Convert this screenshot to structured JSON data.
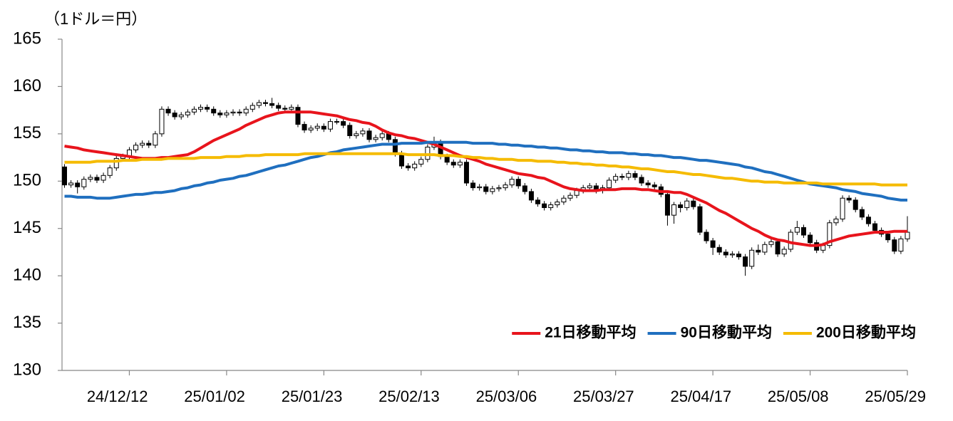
{
  "chart_data": {
    "type": "candlestick",
    "y_label": "（1ドル＝円）",
    "categories": [
      null,
      null,
      null,
      null,
      null,
      null,
      null,
      null,
      null,
      null,
      "24/12/12",
      null,
      null,
      null,
      null,
      null,
      null,
      null,
      null,
      null,
      null,
      null,
      null,
      null,
      null,
      "25/01/02",
      null,
      null,
      null,
      null,
      null,
      null,
      null,
      null,
      null,
      null,
      null,
      null,
      null,
      null,
      "25/01/23",
      null,
      null,
      null,
      null,
      null,
      null,
      null,
      null,
      null,
      null,
      null,
      null,
      null,
      null,
      "25/02/13",
      null,
      null,
      null,
      null,
      null,
      null,
      null,
      null,
      null,
      null,
      null,
      null,
      null,
      null,
      "25/03/06",
      null,
      null,
      null,
      null,
      null,
      null,
      null,
      null,
      null,
      null,
      null,
      null,
      null,
      null,
      "25/03/27",
      null,
      null,
      null,
      null,
      null,
      null,
      null,
      null,
      null,
      null,
      null,
      null,
      null,
      null,
      "25/04/17",
      null,
      null,
      null,
      null,
      null,
      null,
      null,
      null,
      null,
      null,
      null,
      null,
      null,
      null,
      "25/05/08",
      null,
      null,
      null,
      null,
      null,
      null,
      null,
      null,
      null,
      null,
      null,
      null,
      null,
      null,
      "25/05/29"
    ],
    "open": [
      151.5,
      149.6,
      149.8,
      149.4,
      150.2,
      150.4,
      150.1,
      150.6,
      151.4,
      152.4,
      152.6,
      153.3,
      153.8,
      154.0,
      153.8,
      155.0,
      157.6,
      157.2,
      156.8,
      157.0,
      157.3,
      157.6,
      157.8,
      157.6,
      157.2,
      157.0,
      157.2,
      157.3,
      157.2,
      157.6,
      158.0,
      158.3,
      158.2,
      158.0,
      157.7,
      157.6,
      157.8,
      156.0,
      155.4,
      155.6,
      155.8,
      155.5,
      156.3,
      156.3,
      155.9,
      154.8,
      155.0,
      155.3,
      154.4,
      154.6,
      155.0,
      154.4,
      152.9,
      151.6,
      151.4,
      151.8,
      152.3,
      153.6,
      154.1,
      152.6,
      152.0,
      151.7,
      152.0,
      149.8,
      149.3,
      149.4,
      148.9,
      149.2,
      149.3,
      149.6,
      150.2,
      149.5,
      148.9,
      148.0,
      147.6,
      147.2,
      147.5,
      147.8,
      148.2,
      148.5,
      149.0,
      149.3,
      149.5,
      149.0,
      149.3,
      150.1,
      150.5,
      150.4,
      150.8,
      150.4,
      149.8,
      149.6,
      149.4,
      148.6,
      146.4,
      147.5,
      147.2,
      147.9,
      147.3,
      144.6,
      143.7,
      143.0,
      142.5,
      142.2,
      142.3,
      142.0,
      141.0,
      142.7,
      142.5,
      143.3,
      143.6,
      142.3,
      142.8,
      144.6,
      145.1,
      144.3,
      143.5,
      142.7,
      143.2,
      145.6,
      146.0,
      148.2,
      148.0,
      147.0,
      146.2,
      145.5,
      144.8,
      144.4,
      143.8,
      142.6,
      143.9
    ],
    "high": [
      151.8,
      150.1,
      150.1,
      150.5,
      150.7,
      150.7,
      150.9,
      151.7,
      152.7,
      152.9,
      153.6,
      154.1,
      154.3,
      154.3,
      155.3,
      157.9,
      157.9,
      157.5,
      157.3,
      157.6,
      157.9,
      158.1,
      158.1,
      157.9,
      157.5,
      157.5,
      157.6,
      157.6,
      157.9,
      158.3,
      158.6,
      158.6,
      158.8,
      158.3,
      158.0,
      158.1,
      158.1,
      156.3,
      155.9,
      156.1,
      156.1,
      156.6,
      156.6,
      156.6,
      156.2,
      155.3,
      155.6,
      155.6,
      154.9,
      155.3,
      155.3,
      154.7,
      153.2,
      151.9,
      152.1,
      152.6,
      153.9,
      154.7,
      154.4,
      152.9,
      152.3,
      152.3,
      152.3,
      150.1,
      149.7,
      149.7,
      149.5,
      149.6,
      149.9,
      150.5,
      150.5,
      149.8,
      149.2,
      148.3,
      147.9,
      147.8,
      148.1,
      148.5,
      148.8,
      149.3,
      149.6,
      149.8,
      149.8,
      149.6,
      150.4,
      150.8,
      150.8,
      151.1,
      151.1,
      150.7,
      150.1,
      149.9,
      149.7,
      148.9,
      147.8,
      147.8,
      148.2,
      148.2,
      147.6,
      144.9,
      144.0,
      143.3,
      142.8,
      142.6,
      142.6,
      142.3,
      143.0,
      143.3,
      143.6,
      143.9,
      143.9,
      143.1,
      144.9,
      145.8,
      145.4,
      144.6,
      143.8,
      143.5,
      145.9,
      146.3,
      148.5,
      148.5,
      148.3,
      147.3,
      146.5,
      145.8,
      145.1,
      144.7,
      144.1,
      144.2,
      146.3
    ],
    "low": [
      149.3,
      149.3,
      148.7,
      149.1,
      149.9,
      149.8,
      149.8,
      150.3,
      151.1,
      152.1,
      152.3,
      153.0,
      153.5,
      153.5,
      153.5,
      154.7,
      156.9,
      156.5,
      156.5,
      156.7,
      157.0,
      157.3,
      157.3,
      156.9,
      156.7,
      156.7,
      156.9,
      156.9,
      156.9,
      157.3,
      157.7,
      157.9,
      157.7,
      157.4,
      157.3,
      157.3,
      155.7,
      155.1,
      155.1,
      155.3,
      155.2,
      155.2,
      156.0,
      155.6,
      154.5,
      154.5,
      154.7,
      154.1,
      154.1,
      154.3,
      154.1,
      152.6,
      151.3,
      151.1,
      151.1,
      151.5,
      152.0,
      153.3,
      152.3,
      151.7,
      151.4,
      151.4,
      149.5,
      149.0,
      149.0,
      148.6,
      148.6,
      148.9,
      149.0,
      149.3,
      149.2,
      148.6,
      147.7,
      147.3,
      146.9,
      146.9,
      147.2,
      147.5,
      147.9,
      148.2,
      148.7,
      149.0,
      148.7,
      148.7,
      149.0,
      149.8,
      150.1,
      150.1,
      150.1,
      149.5,
      149.3,
      149.1,
      148.3,
      145.3,
      145.5,
      146.7,
      146.9,
      147.0,
      144.3,
      143.4,
      142.2,
      142.2,
      141.9,
      141.9,
      141.7,
      140.0,
      140.7,
      142.2,
      142.2,
      143.0,
      142.0,
      142.0,
      142.5,
      144.3,
      144.0,
      143.2,
      142.4,
      142.4,
      142.9,
      145.3,
      145.7,
      147.7,
      146.7,
      145.9,
      145.2,
      144.5,
      144.1,
      143.5,
      142.3,
      142.3,
      143.6
    ],
    "close": [
      149.6,
      149.8,
      149.4,
      150.2,
      150.4,
      150.1,
      150.6,
      151.4,
      152.4,
      152.6,
      153.3,
      153.8,
      154.0,
      153.8,
      155.0,
      157.6,
      157.2,
      156.8,
      157.0,
      157.3,
      157.6,
      157.8,
      157.6,
      157.2,
      157.0,
      157.2,
      157.3,
      157.2,
      157.6,
      158.0,
      158.3,
      158.2,
      158.0,
      157.7,
      157.6,
      157.8,
      156.0,
      155.4,
      155.6,
      155.8,
      155.5,
      156.3,
      156.3,
      155.9,
      154.8,
      155.0,
      155.3,
      154.4,
      154.6,
      155.0,
      154.4,
      152.9,
      151.6,
      151.4,
      151.8,
      152.3,
      153.6,
      154.1,
      152.6,
      152.0,
      151.7,
      152.0,
      149.8,
      149.3,
      149.4,
      148.9,
      149.2,
      149.3,
      149.6,
      150.2,
      149.5,
      148.9,
      148.0,
      147.6,
      147.2,
      147.5,
      147.8,
      148.2,
      148.5,
      149.0,
      149.3,
      149.5,
      149.0,
      149.3,
      150.1,
      150.5,
      150.4,
      150.8,
      150.4,
      149.8,
      149.6,
      149.4,
      148.6,
      146.4,
      147.5,
      147.2,
      147.9,
      147.3,
      144.6,
      143.7,
      143.0,
      142.5,
      142.2,
      142.3,
      142.0,
      141.0,
      142.7,
      142.5,
      143.3,
      143.6,
      142.3,
      142.8,
      144.6,
      145.1,
      144.3,
      143.5,
      142.7,
      143.2,
      145.6,
      146.0,
      148.2,
      148.0,
      147.0,
      146.2,
      145.5,
      144.8,
      144.4,
      143.8,
      142.6,
      143.9,
      144.6
    ],
    "up_color": "#ffffff",
    "down_color": "#000000",
    "series": [
      {
        "name": "21日移動平均",
        "color": "#e8141c",
        "values": [
          153.7,
          153.6,
          153.5,
          153.3,
          153.2,
          153.1,
          153.0,
          152.9,
          152.8,
          152.7,
          152.6,
          152.5,
          152.4,
          152.4,
          152.4,
          152.5,
          152.5,
          152.6,
          152.7,
          152.8,
          153.1,
          153.5,
          153.9,
          154.3,
          154.6,
          154.9,
          155.2,
          155.5,
          155.9,
          156.2,
          156.5,
          156.8,
          157.0,
          157.2,
          157.3,
          157.3,
          157.3,
          157.3,
          157.3,
          157.2,
          157.1,
          157.0,
          156.9,
          156.7,
          156.5,
          156.4,
          156.2,
          156.1,
          155.8,
          155.4,
          155.1,
          154.9,
          154.8,
          154.6,
          154.5,
          154.3,
          154.1,
          153.9,
          153.6,
          153.3,
          153.0,
          152.7,
          152.5,
          152.3,
          152.1,
          151.8,
          151.6,
          151.4,
          151.2,
          151.0,
          150.8,
          150.7,
          150.6,
          150.4,
          150.3,
          150.0,
          149.7,
          149.4,
          149.2,
          149.1,
          149.0,
          149.0,
          149.0,
          149.1,
          149.1,
          149.1,
          149.2,
          149.2,
          149.2,
          149.1,
          149.1,
          149.0,
          148.9,
          148.9,
          148.8,
          148.8,
          148.6,
          148.3,
          148.0,
          147.7,
          147.3,
          146.9,
          146.6,
          146.2,
          145.8,
          145.4,
          145.0,
          144.7,
          144.3,
          144.0,
          143.8,
          143.7,
          143.5,
          143.4,
          143.3,
          143.2,
          143.2,
          143.3,
          143.6,
          143.8,
          144.0,
          144.2,
          144.3,
          144.4,
          144.5,
          144.6,
          144.6,
          144.6,
          144.7,
          144.7,
          144.7
        ]
      },
      {
        "name": "90日移動平均",
        "color": "#1f6fbf",
        "values": [
          148.4,
          148.4,
          148.3,
          148.3,
          148.3,
          148.2,
          148.2,
          148.2,
          148.3,
          148.4,
          148.5,
          148.6,
          148.6,
          148.7,
          148.8,
          148.8,
          148.9,
          149.0,
          149.2,
          149.3,
          149.5,
          149.6,
          149.8,
          149.9,
          150.1,
          150.2,
          150.3,
          150.5,
          150.6,
          150.8,
          151.0,
          151.2,
          151.4,
          151.6,
          151.7,
          151.9,
          152.1,
          152.3,
          152.5,
          152.6,
          152.8,
          153.0,
          153.1,
          153.3,
          153.4,
          153.5,
          153.6,
          153.7,
          153.8,
          153.9,
          153.9,
          153.9,
          154.0,
          154.0,
          154.0,
          154.0,
          154.1,
          154.1,
          154.1,
          154.1,
          154.1,
          154.1,
          154.1,
          154.0,
          154.0,
          154.0,
          154.0,
          153.9,
          153.9,
          153.8,
          153.8,
          153.7,
          153.7,
          153.6,
          153.6,
          153.5,
          153.5,
          153.4,
          153.3,
          153.3,
          153.2,
          153.2,
          153.1,
          153.1,
          153.0,
          153.0,
          153.0,
          152.9,
          152.9,
          152.8,
          152.8,
          152.7,
          152.7,
          152.6,
          152.5,
          152.5,
          152.4,
          152.3,
          152.2,
          152.2,
          152.1,
          152.0,
          151.9,
          151.8,
          151.7,
          151.5,
          151.4,
          151.2,
          151.0,
          150.9,
          150.7,
          150.5,
          150.3,
          150.1,
          149.9,
          149.7,
          149.6,
          149.5,
          149.4,
          149.3,
          149.1,
          149.0,
          148.9,
          148.7,
          148.6,
          148.5,
          148.4,
          148.2,
          148.1,
          148.0,
          148.0
        ]
      },
      {
        "name": "200日移動平均",
        "color": "#f5bb00",
        "values": [
          152.0,
          152.0,
          152.0,
          152.0,
          152.0,
          152.1,
          152.1,
          152.1,
          152.1,
          152.2,
          152.2,
          152.2,
          152.3,
          152.3,
          152.3,
          152.3,
          152.4,
          152.4,
          152.4,
          152.4,
          152.4,
          152.5,
          152.5,
          152.5,
          152.5,
          152.6,
          152.6,
          152.6,
          152.7,
          152.7,
          152.7,
          152.8,
          152.8,
          152.8,
          152.8,
          152.8,
          152.8,
          152.9,
          152.9,
          152.9,
          152.9,
          152.9,
          152.9,
          152.9,
          152.9,
          152.9,
          152.9,
          152.9,
          152.9,
          152.9,
          152.9,
          152.9,
          152.9,
          152.8,
          152.8,
          152.8,
          152.8,
          152.8,
          152.7,
          152.7,
          152.7,
          152.6,
          152.6,
          152.5,
          152.5,
          152.4,
          152.4,
          152.3,
          152.3,
          152.3,
          152.2,
          152.2,
          152.2,
          152.1,
          152.1,
          152.1,
          152.0,
          152.0,
          151.9,
          151.9,
          151.8,
          151.8,
          151.7,
          151.7,
          151.6,
          151.6,
          151.5,
          151.5,
          151.4,
          151.3,
          151.3,
          151.2,
          151.1,
          151.0,
          151.0,
          150.9,
          150.8,
          150.7,
          150.7,
          150.6,
          150.5,
          150.4,
          150.3,
          150.3,
          150.2,
          150.1,
          150.0,
          150.0,
          149.9,
          149.9,
          149.9,
          149.8,
          149.8,
          149.8,
          149.8,
          149.8,
          149.8,
          149.7,
          149.7,
          149.7,
          149.7,
          149.7,
          149.7,
          149.7,
          149.7,
          149.7,
          149.6,
          149.6,
          149.6,
          149.6,
          149.6
        ]
      }
    ],
    "ylim": [
      130,
      165
    ],
    "yticks": [
      130,
      135,
      140,
      145,
      150,
      155,
      160,
      165
    ],
    "grid": false,
    "legend": "lower right"
  }
}
